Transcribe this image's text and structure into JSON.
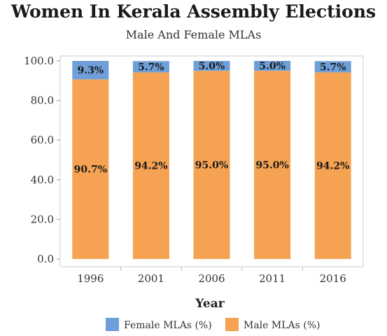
{
  "chart_data": {
    "type": "bar",
    "stacked": true,
    "title": "Women In Kerala Assembly Elections",
    "subtitle": "Male And Female MLAs",
    "xlabel": "Year",
    "ylabel": "",
    "categories": [
      "1996",
      "2001",
      "2006",
      "2011",
      "2016"
    ],
    "ylim": [
      0,
      100
    ],
    "yticks": [
      "0.0",
      "20.0",
      "40.0",
      "60.0",
      "80.0",
      "100.0"
    ],
    "series": [
      {
        "name": "Male MLAs (%)",
        "values": [
          90.7,
          94.2,
          95.0,
          95.0,
          94.2
        ],
        "labels": [
          "90.7%",
          "94.2%",
          "95.0%",
          "95.0%",
          "94.2%"
        ],
        "color": "#f5a252"
      },
      {
        "name": "Female MLAs (%)",
        "values": [
          9.3,
          5.7,
          5.0,
          5.0,
          5.7
        ],
        "labels": [
          "9.3%",
          "5.7%",
          "5.0%",
          "5.0%",
          "5.7%"
        ],
        "color": "#6f9fd8"
      }
    ],
    "legend": {
      "position": "bottom",
      "order": [
        "Female MLAs (%)",
        "Male MLAs (%)"
      ]
    },
    "grid": false
  }
}
